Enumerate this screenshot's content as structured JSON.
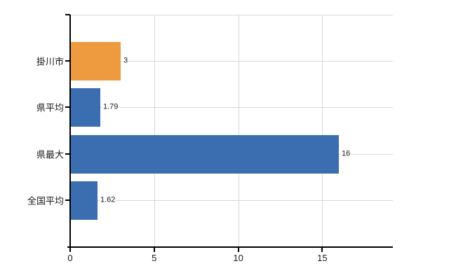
{
  "chart_data": {
    "type": "bar",
    "orientation": "horizontal",
    "categories": [
      "掛川市",
      "県平均",
      "県最大",
      "全国平均"
    ],
    "values": [
      3,
      1.79,
      16,
      1.62
    ],
    "value_labels": [
      "3",
      "1.79",
      "16",
      "1.62"
    ],
    "series_colors": [
      "#EE9A3F",
      "#3B6DB1",
      "#3B6DB1",
      "#3B6DB1"
    ],
    "x_tick_values": [
      0,
      5,
      10,
      15
    ],
    "x_tick_labels": [
      "0",
      "5",
      "10",
      "15"
    ],
    "xlim": [
      0,
      19.2
    ],
    "grid": "on",
    "legend": "none",
    "highlighted_category": "掛川市"
  },
  "colors": {
    "background": "#ffffff",
    "axis": "#000000",
    "gridline": "#d7dad3",
    "text": "#1a1a1a",
    "highlight_bar": "#EE9A3F",
    "default_bar": "#3B6DB1"
  }
}
